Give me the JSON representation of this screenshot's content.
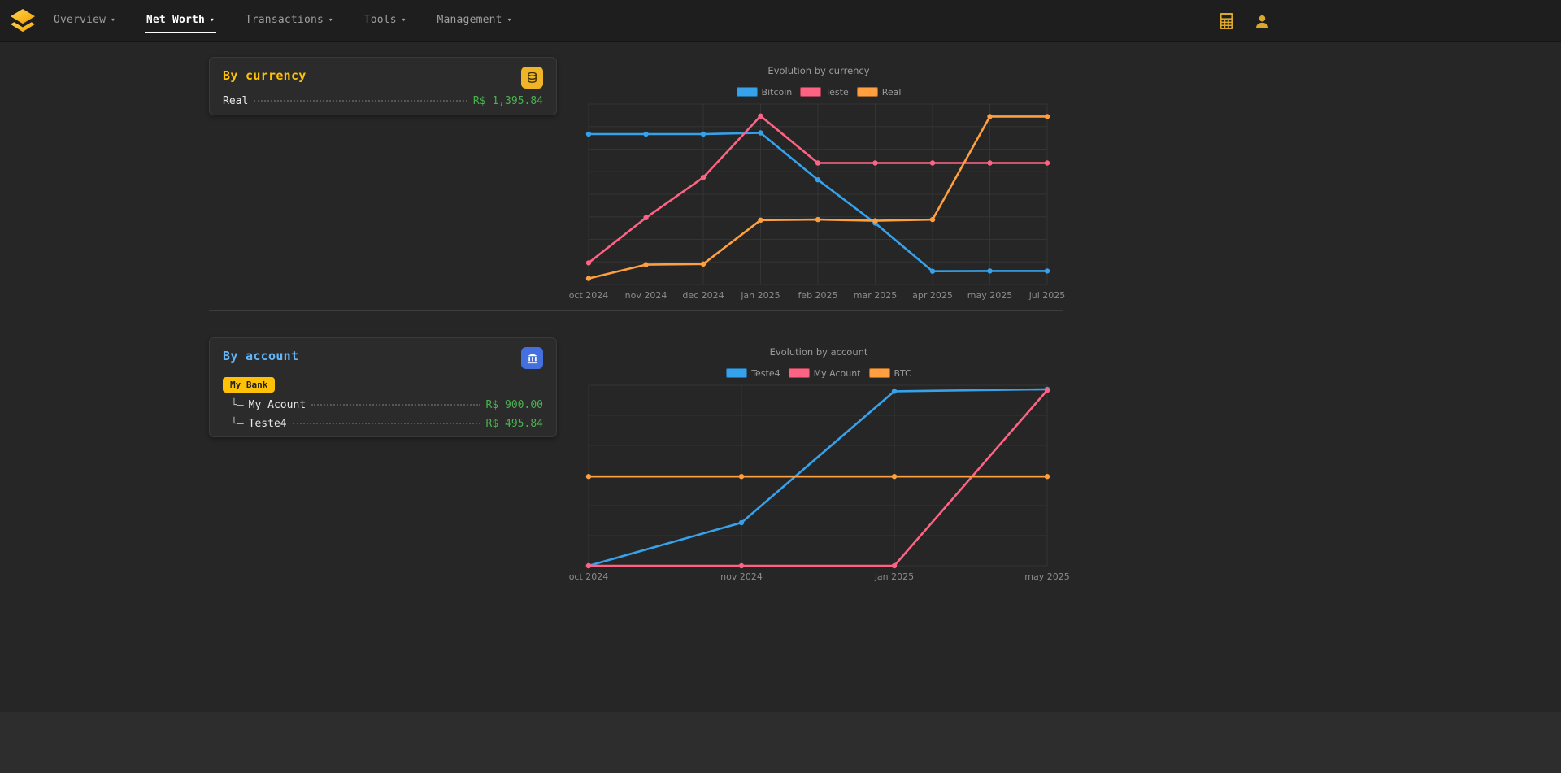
{
  "topbar": {
    "nav": [
      {
        "label": "Overview",
        "active": false
      },
      {
        "label": "Net Worth",
        "active": true
      },
      {
        "label": "Transactions",
        "active": false
      },
      {
        "label": "Tools",
        "active": false
      },
      {
        "label": "Management",
        "active": false
      }
    ],
    "right_icons": [
      "calculator-icon",
      "user-icon"
    ]
  },
  "theme": {
    "background": "#262626",
    "topbar_background": "#1e1e1e",
    "card_background": "#2b2b2b",
    "gold_accent": "#ffc107",
    "blue_accent": "#64b5f6",
    "value_green": "#4caf50",
    "muted_text": "#9e9e9e"
  },
  "icons": {
    "logo": "layers-logo-icon",
    "currency_card_button": "coins-icon",
    "account_card_button": "bank-icon",
    "nav_caret": "chevron-down-icon"
  },
  "cards": {
    "currency": {
      "title": "By currency",
      "accent": "#ffc107",
      "rows": [
        {
          "label": "Real",
          "value": "R$ 1,395.84"
        }
      ]
    },
    "account": {
      "title": "By account",
      "accent": "#64b5f6",
      "bank_badge": "My Bank",
      "rows": [
        {
          "prefix": "└–",
          "label": "My Acount",
          "value": "R$ 900.00"
        },
        {
          "prefix": "└–",
          "label": "Teste4",
          "value": "R$ 495.84"
        }
      ]
    }
  },
  "chart_data": [
    {
      "type": "line",
      "title": "Evolution by currency",
      "categories": [
        "oct 2024",
        "nov 2024",
        "dec 2024",
        "jan 2025",
        "feb 2025",
        "mar 2025",
        "apr 2025",
        "may 2025",
        "jul 2025"
      ],
      "series": [
        {
          "name": "Bitcoin",
          "color": "#36a2eb",
          "values": [
            1250,
            1250,
            1250,
            1260,
            870,
            510,
            110,
            112,
            112
          ]
        },
        {
          "name": "Teste",
          "color": "#ff6384",
          "values": [
            180,
            555,
            890,
            1400,
            1010,
            1010,
            1010,
            1010,
            1010
          ]
        },
        {
          "name": "Real",
          "color": "#ff9f40",
          "values": [
            50,
            165,
            170,
            535,
            540,
            530,
            540,
            1396,
            1396
          ]
        }
      ],
      "ylim": [
        0,
        1500
      ],
      "y_gridlines": 8,
      "grid": true,
      "legend_position": "top",
      "xlabel": "",
      "ylabel": ""
    },
    {
      "type": "line",
      "title": "Evolution by account",
      "categories": [
        "oct 2024",
        "nov 2024",
        "jan 2025",
        "may 2025"
      ],
      "series": [
        {
          "name": "Teste4",
          "color": "#36a2eb",
          "values": [
            0,
            215,
            870,
            880
          ]
        },
        {
          "name": "My Acount",
          "color": "#ff6384",
          "values": [
            0,
            0,
            0,
            875
          ]
        },
        {
          "name": "BTC",
          "color": "#ff9f40",
          "values": [
            445,
            445,
            445,
            445
          ]
        }
      ],
      "ylim": [
        0,
        900
      ],
      "y_gridlines": 6,
      "grid": true,
      "legend_position": "top",
      "xlabel": "",
      "ylabel": ""
    }
  ]
}
